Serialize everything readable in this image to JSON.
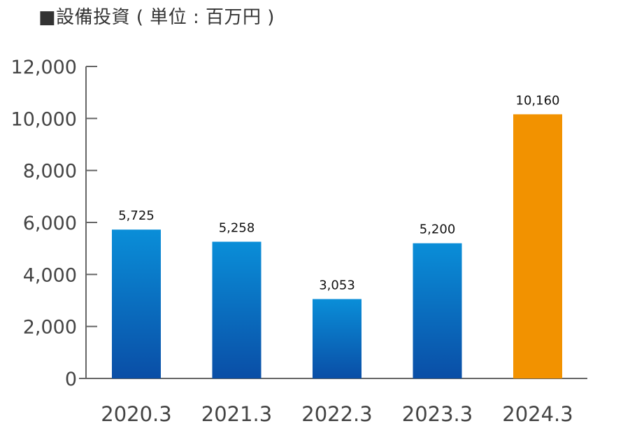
{
  "chart_data": {
    "type": "bar",
    "title": "■設備投資 ( 単位 : 百万円 )",
    "xlabel": "",
    "ylabel": "",
    "categories": [
      "2020.3",
      "2021.3",
      "2022.3",
      "2023.3",
      "2024.3"
    ],
    "values": [
      5725,
      5258,
      3053,
      5200,
      10160
    ],
    "value_labels": [
      "5,725",
      "5,258",
      "3,053",
      "5,200",
      "10,160"
    ],
    "ylim": [
      0,
      12000
    ],
    "yticks": [
      0,
      2000,
      4000,
      6000,
      8000,
      10000,
      12000
    ],
    "ytick_labels": [
      "0",
      "2,000",
      "4,000",
      "6,000",
      "8,000",
      "10,000",
      "12,000"
    ],
    "grid": false,
    "colors": {
      "bar_gradient_top": "#0a8ed8",
      "bar_gradient_bottom": "#0a4ea6",
      "highlight_bar": "#f29200",
      "axis": "#666666"
    },
    "highlight_index": 4
  }
}
